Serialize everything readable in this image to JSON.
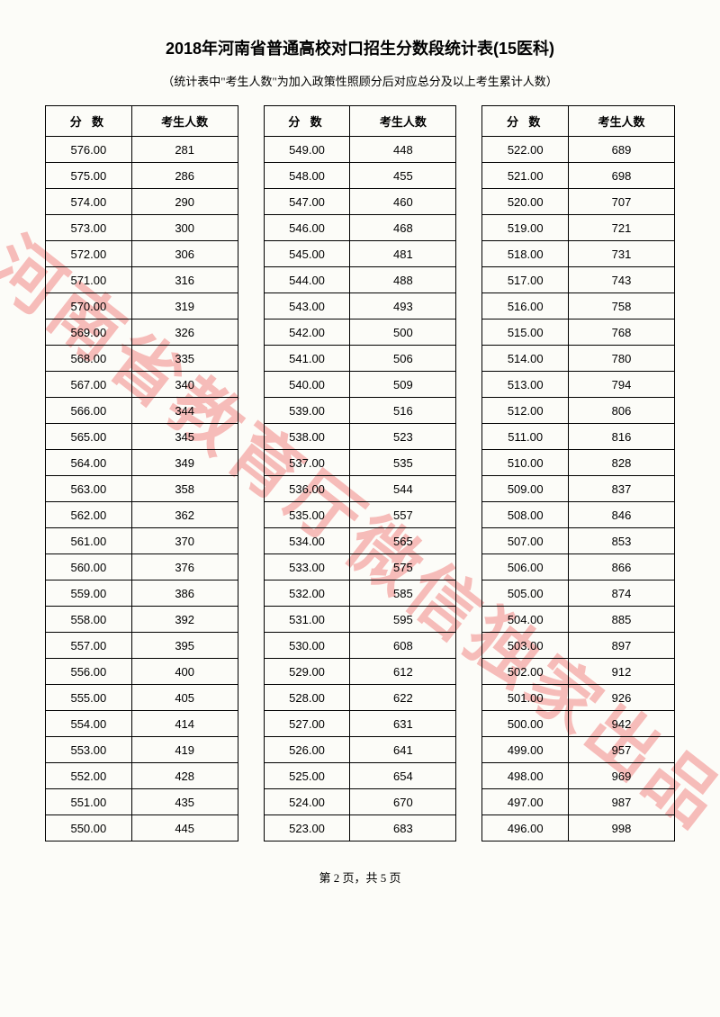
{
  "title": "2018年河南省普通高校对口招生分数段统计表(15医科)",
  "subtitle": "（统计表中\"考生人数\"为加入政策性照顾分后对应总分及以上考生累计人数）",
  "watermark": "河南省教育厅微信独家出品",
  "footer": "第 2 页，共 5 页",
  "headers": {
    "score": "分 数",
    "count": "考生人数"
  },
  "columns": [
    [
      [
        "576.00",
        "281"
      ],
      [
        "575.00",
        "286"
      ],
      [
        "574.00",
        "290"
      ],
      [
        "573.00",
        "300"
      ],
      [
        "572.00",
        "306"
      ],
      [
        "571.00",
        "316"
      ],
      [
        "570.00",
        "319"
      ],
      [
        "569.00",
        "326"
      ],
      [
        "568.00",
        "335"
      ],
      [
        "567.00",
        "340"
      ],
      [
        "566.00",
        "344"
      ],
      [
        "565.00",
        "345"
      ],
      [
        "564.00",
        "349"
      ],
      [
        "563.00",
        "358"
      ],
      [
        "562.00",
        "362"
      ],
      [
        "561.00",
        "370"
      ],
      [
        "560.00",
        "376"
      ],
      [
        "559.00",
        "386"
      ],
      [
        "558.00",
        "392"
      ],
      [
        "557.00",
        "395"
      ],
      [
        "556.00",
        "400"
      ],
      [
        "555.00",
        "405"
      ],
      [
        "554.00",
        "414"
      ],
      [
        "553.00",
        "419"
      ],
      [
        "552.00",
        "428"
      ],
      [
        "551.00",
        "435"
      ],
      [
        "550.00",
        "445"
      ]
    ],
    [
      [
        "549.00",
        "448"
      ],
      [
        "548.00",
        "455"
      ],
      [
        "547.00",
        "460"
      ],
      [
        "546.00",
        "468"
      ],
      [
        "545.00",
        "481"
      ],
      [
        "544.00",
        "488"
      ],
      [
        "543.00",
        "493"
      ],
      [
        "542.00",
        "500"
      ],
      [
        "541.00",
        "506"
      ],
      [
        "540.00",
        "509"
      ],
      [
        "539.00",
        "516"
      ],
      [
        "538.00",
        "523"
      ],
      [
        "537.00",
        "535"
      ],
      [
        "536.00",
        "544"
      ],
      [
        "535.00",
        "557"
      ],
      [
        "534.00",
        "565"
      ],
      [
        "533.00",
        "575"
      ],
      [
        "532.00",
        "585"
      ],
      [
        "531.00",
        "595"
      ],
      [
        "530.00",
        "608"
      ],
      [
        "529.00",
        "612"
      ],
      [
        "528.00",
        "622"
      ],
      [
        "527.00",
        "631"
      ],
      [
        "526.00",
        "641"
      ],
      [
        "525.00",
        "654"
      ],
      [
        "524.00",
        "670"
      ],
      [
        "523.00",
        "683"
      ]
    ],
    [
      [
        "522.00",
        "689"
      ],
      [
        "521.00",
        "698"
      ],
      [
        "520.00",
        "707"
      ],
      [
        "519.00",
        "721"
      ],
      [
        "518.00",
        "731"
      ],
      [
        "517.00",
        "743"
      ],
      [
        "516.00",
        "758"
      ],
      [
        "515.00",
        "768"
      ],
      [
        "514.00",
        "780"
      ],
      [
        "513.00",
        "794"
      ],
      [
        "512.00",
        "806"
      ],
      [
        "511.00",
        "816"
      ],
      [
        "510.00",
        "828"
      ],
      [
        "509.00",
        "837"
      ],
      [
        "508.00",
        "846"
      ],
      [
        "507.00",
        "853"
      ],
      [
        "506.00",
        "866"
      ],
      [
        "505.00",
        "874"
      ],
      [
        "504.00",
        "885"
      ],
      [
        "503.00",
        "897"
      ],
      [
        "502.00",
        "912"
      ],
      [
        "501.00",
        "926"
      ],
      [
        "500.00",
        "942"
      ],
      [
        "499.00",
        "957"
      ],
      [
        "498.00",
        "969"
      ],
      [
        "497.00",
        "987"
      ],
      [
        "496.00",
        "998"
      ]
    ]
  ]
}
